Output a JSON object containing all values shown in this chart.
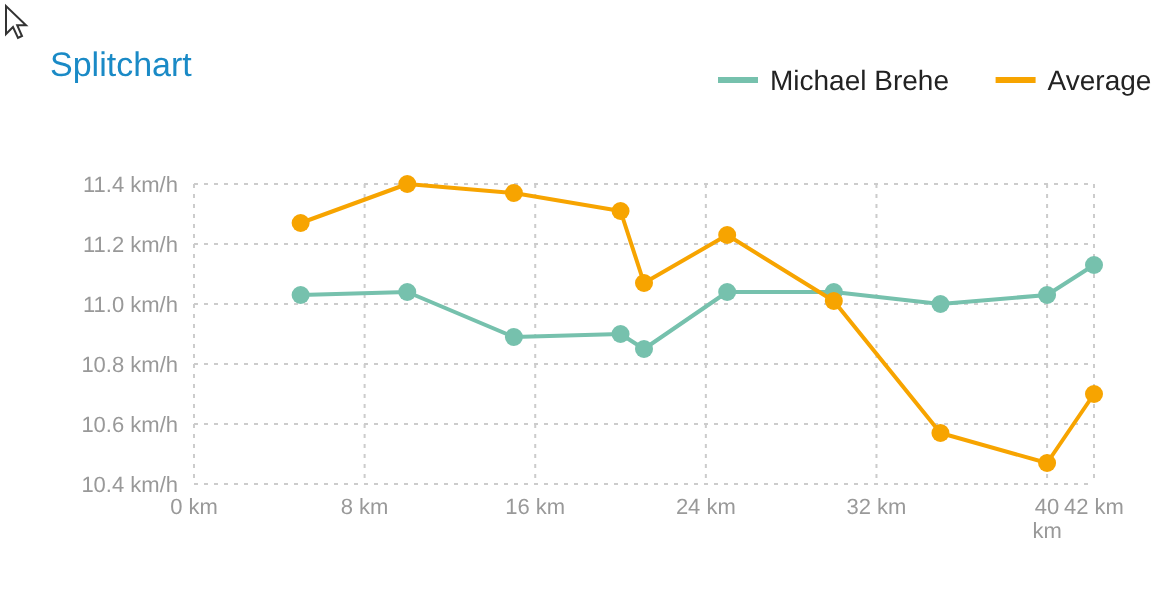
{
  "chart_data": {
    "type": "line",
    "title": "Splitchart",
    "x": [
      5,
      10,
      15,
      20,
      21.1,
      25,
      30,
      35,
      40,
      42.2
    ],
    "series": [
      {
        "name": "Michael Brehe",
        "color": "#76c1ad",
        "values": [
          11.03,
          11.04,
          10.89,
          10.9,
          10.85,
          11.04,
          11.04,
          11.0,
          11.03,
          11.13
        ]
      },
      {
        "name": "Average",
        "color": "#f7a400",
        "values": [
          11.27,
          11.4,
          11.37,
          11.31,
          11.07,
          11.23,
          11.01,
          10.57,
          10.47,
          10.7
        ]
      }
    ],
    "xlim": [
      0,
      42.2
    ],
    "xticks": [
      {
        "value": 0,
        "label": "0 km"
      },
      {
        "value": 8,
        "label": "8 km"
      },
      {
        "value": 16,
        "label": "16 km"
      },
      {
        "value": 24,
        "label": "24 km"
      },
      {
        "value": 32,
        "label": "32 km"
      },
      {
        "value": 40,
        "label": "40 km"
      },
      {
        "value": 42.2,
        "label": "42 km"
      }
    ],
    "ylim": [
      10.4,
      11.4
    ],
    "yticks": [
      {
        "value": 10.4,
        "label": "10.4 km/h"
      },
      {
        "value": 10.6,
        "label": "10.6 km/h"
      },
      {
        "value": 10.8,
        "label": "10.8 km/h"
      },
      {
        "value": 11.0,
        "label": "11.0 km/h"
      },
      {
        "value": 11.2,
        "label": "11.2 km/h"
      },
      {
        "value": 11.4,
        "label": "11.4 km/h"
      }
    ],
    "grid": true,
    "legend": "top right",
    "marker": "circle",
    "line_style": "solid"
  }
}
